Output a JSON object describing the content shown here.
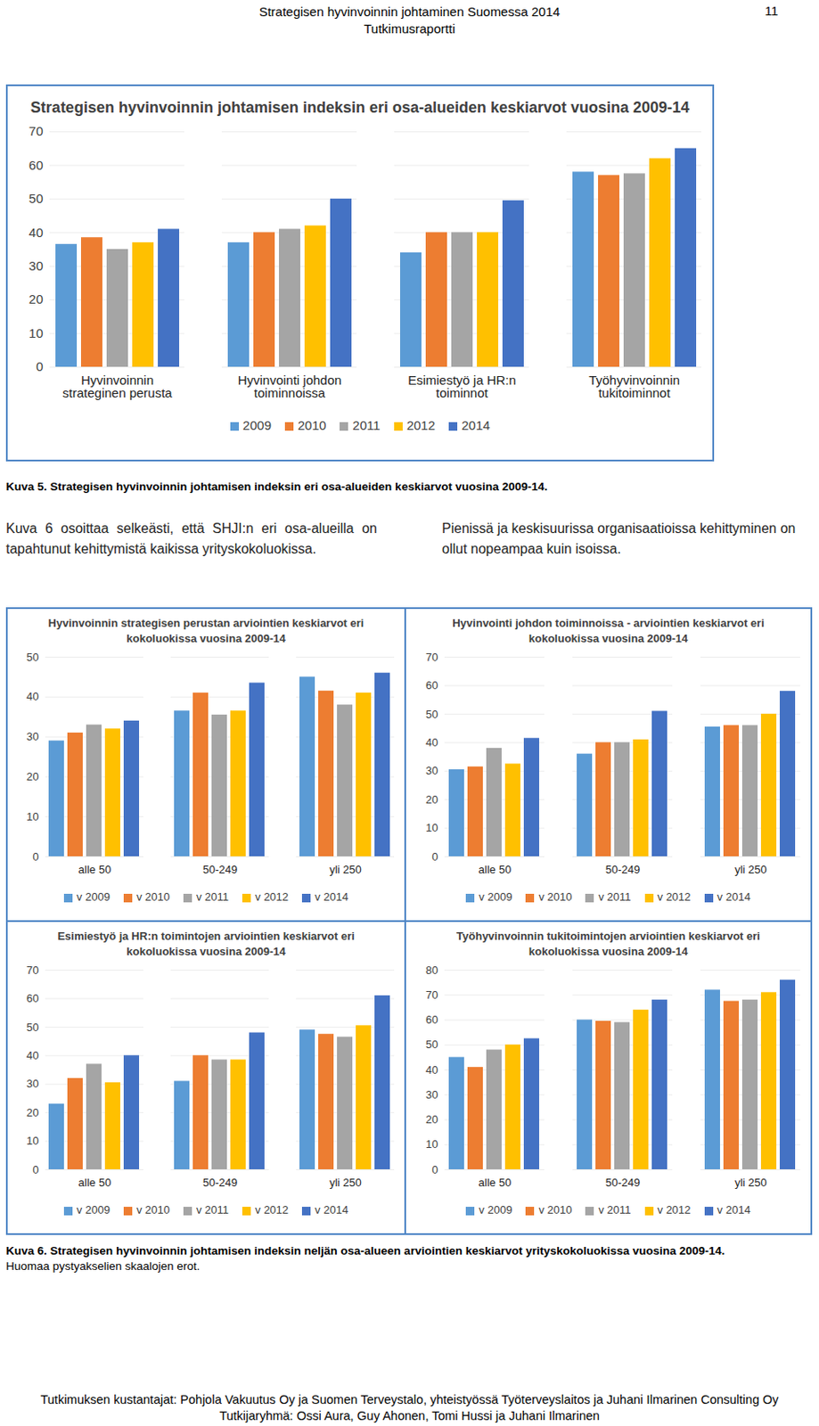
{
  "header": {
    "title": "Strategisen hyvinvoinnin johtaminen Suomessa 2014",
    "subtitle": "Tutkimusraportti",
    "page": "11"
  },
  "chart_data": [
    {
      "type": "bar",
      "title": "Strategisen hyvinvoinnin johtamisen indeksin eri osa-alueiden keskiarvot vuosina 2009-14",
      "categories": [
        "Hyvinvoinnin strateginen perusta",
        "Hyvinvointi johdon toiminnoissa",
        "Esimiestyö ja HR:n toiminnot",
        "Työhyvinvoinnin tukitoiminnot"
      ],
      "series": [
        {
          "name": "2009",
          "color": "#5b9bd5",
          "values": [
            36.5,
            37,
            34,
            58
          ]
        },
        {
          "name": "2010",
          "color": "#ed7d31",
          "values": [
            38.5,
            40,
            40,
            57
          ]
        },
        {
          "name": "2011",
          "color": "#a5a5a5",
          "values": [
            35,
            41,
            40,
            57.5
          ]
        },
        {
          "name": "2012",
          "color": "#ffc000",
          "values": [
            37,
            42,
            40,
            62
          ]
        },
        {
          "name": "2014",
          "color": "#4472c4",
          "values": [
            41,
            50,
            49.5,
            65
          ]
        }
      ],
      "ylim": [
        0,
        70
      ],
      "yticks": [
        0,
        10,
        20,
        30,
        40,
        50,
        60,
        70
      ],
      "grid": true,
      "legend": "bottom"
    },
    {
      "type": "bar",
      "title": "Hyvinvoinnin strategisen perustan arviointien keskiarvot eri kokoluokissa vuosina 2009-14",
      "categories": [
        "alle 50",
        "50-249",
        "yli 250"
      ],
      "series": [
        {
          "name": "v 2009",
          "color": "#5b9bd5",
          "values": [
            29,
            36.5,
            45
          ]
        },
        {
          "name": "v 2010",
          "color": "#ed7d31",
          "values": [
            31,
            41,
            41.5
          ]
        },
        {
          "name": "v 2011",
          "color": "#a5a5a5",
          "values": [
            33,
            35.5,
            38
          ]
        },
        {
          "name": "v 2012",
          "color": "#ffc000",
          "values": [
            32,
            36.5,
            41
          ]
        },
        {
          "name": "v 2014",
          "color": "#4472c4",
          "values": [
            34,
            43.5,
            46
          ]
        }
      ],
      "ylim": [
        0,
        50
      ],
      "yticks": [
        0,
        10,
        20,
        30,
        40,
        50
      ],
      "grid": true,
      "legend": "bottom"
    },
    {
      "type": "bar",
      "title": "Hyvinvointi johdon toiminnoissa - arviointien keskiarvot eri kokoluokissa vuosina 2009-14",
      "categories": [
        "alle 50",
        "50-249",
        "yli 250"
      ],
      "series": [
        {
          "name": "v 2009",
          "color": "#5b9bd5",
          "values": [
            30.5,
            36,
            45.5
          ]
        },
        {
          "name": "v 2010",
          "color": "#ed7d31",
          "values": [
            31.5,
            40,
            46
          ]
        },
        {
          "name": "v 2011",
          "color": "#a5a5a5",
          "values": [
            38,
            40,
            46
          ]
        },
        {
          "name": "v 2012",
          "color": "#ffc000",
          "values": [
            32.5,
            41,
            50
          ]
        },
        {
          "name": "v 2014",
          "color": "#4472c4",
          "values": [
            41.5,
            51,
            58
          ]
        }
      ],
      "ylim": [
        0,
        70
      ],
      "yticks": [
        0,
        10,
        20,
        30,
        40,
        50,
        60,
        70
      ],
      "grid": true,
      "legend": "bottom"
    },
    {
      "type": "bar",
      "title": "Esimiestyö ja HR:n toimintojen arviointien keskiarvot eri kokoluokissa vuosina 2009-14",
      "categories": [
        "alle 50",
        "50-249",
        "yli 250"
      ],
      "series": [
        {
          "name": "v 2009",
          "color": "#5b9bd5",
          "values": [
            23,
            31,
            49
          ]
        },
        {
          "name": "v 2010",
          "color": "#ed7d31",
          "values": [
            32,
            40,
            47.5
          ]
        },
        {
          "name": "v 2011",
          "color": "#a5a5a5",
          "values": [
            37,
            38.5,
            46.5
          ]
        },
        {
          "name": "v 2012",
          "color": "#ffc000",
          "values": [
            30.5,
            38.5,
            50.5
          ]
        },
        {
          "name": "v 2014",
          "color": "#4472c4",
          "values": [
            40,
            48,
            61
          ]
        }
      ],
      "ylim": [
        0,
        70
      ],
      "yticks": [
        0,
        10,
        20,
        30,
        40,
        50,
        60,
        70
      ],
      "grid": true,
      "legend": "bottom"
    },
    {
      "type": "bar",
      "title": "Työhyvinvoinnin tukitoimintojen arviointien keskiarvot eri kokoluokissa vuosina 2009-14",
      "categories": [
        "alle 50",
        "50-249",
        "yli 250"
      ],
      "series": [
        {
          "name": "v 2009",
          "color": "#5b9bd5",
          "values": [
            45,
            60,
            72
          ]
        },
        {
          "name": "v 2010",
          "color": "#ed7d31",
          "values": [
            41,
            59.5,
            67.5
          ]
        },
        {
          "name": "v 2011",
          "color": "#a5a5a5",
          "values": [
            48,
            59,
            68
          ]
        },
        {
          "name": "v 2012",
          "color": "#ffc000",
          "values": [
            50,
            64,
            71
          ]
        },
        {
          "name": "v 2014",
          "color": "#4472c4",
          "values": [
            52.5,
            68,
            76
          ]
        }
      ],
      "ylim": [
        0,
        80
      ],
      "yticks": [
        0,
        10,
        20,
        30,
        40,
        50,
        60,
        70,
        80
      ],
      "grid": true,
      "legend": "bottom"
    }
  ],
  "captions": {
    "figure5": "Kuva 5. Strategisen hyvinvoinnin johtamisen indeksin eri osa-alueiden keskiarvot vuosina 2009-14.",
    "figure6": "Kuva 6. Strategisen hyvinvoinnin johtamisen indeksin neljän osa-alueen arviointien keskiarvot yrityskokoluokissa vuosina 2009-14.",
    "figure6_note": "Huomaa pystyakselien skaalojen erot."
  },
  "paragraphs": [
    "Kuva 6 osoittaa selkeästi, että SHJI:n eri osa-alueilla on tapahtunut kehittymistä kaikissa yrityskokoluokissa.",
    "Pienissä ja keskisuurissa organisaatioissa kehittyminen on ollut nopeampaa kuin isoissa."
  ],
  "footer": [
    "Tutkimuksen kustantajat: Pohjola Vakuutus Oy ja Suomen Terveystalo, yhteistyössä Työterveyslaitos ja Juhani Ilmarinen Consulting Oy",
    "Tutkijaryhmä: Ossi Aura, Guy Ahonen, Tomi Hussi ja Juhani Ilmarinen"
  ]
}
